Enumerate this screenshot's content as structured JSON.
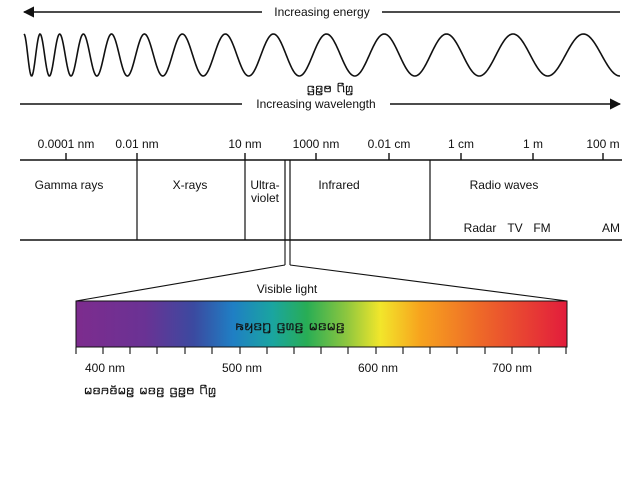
{
  "top": {
    "energy_label": "Increasing energy",
    "wavelength_label": "Increasing wavelength",
    "wave_overlay": "ꤞꤢ꤭ꤥ ꤖꤛ꤬"
  },
  "scale": {
    "ticks": [
      "0.0001 nm",
      "0.01 nm",
      "10 nm",
      "1000 nm",
      "0.01 cm",
      "1 cm",
      "1 m",
      "100 m"
    ]
  },
  "bands": {
    "gamma": "Gamma rays",
    "xrays": "X-rays",
    "uv_line1": "Ultra-",
    "uv_line2": "violet",
    "infrared": "Infrared",
    "radio": "Radio waves",
    "radar": "Radar",
    "tv": "TV",
    "fm": "FM",
    "am": "AM"
  },
  "visible": {
    "label": "Visible light",
    "overlay": "ꤒꤟꤢꤚ꤬ ꤞꤛꤢ꤬ ꤗꤢꤗꤢ꤬",
    "ticks": [
      "400 nm",
      "500 nm",
      "600 nm",
      "700 nm"
    ],
    "bottom_overlay": "ꤗꤢꤏꤢꤩꤗꤢ꤭ ꤗꤢꤢ꤬ ꤞꤢ꤭ꤥ ꤖꤛ꤬"
  },
  "colors": {
    "line": "#111111",
    "spectrum": [
      "#7d2c8e",
      "#5b3a98",
      "#2f4fa3",
      "#1f8bc9",
      "#1aa58a",
      "#3db34a",
      "#b8d431",
      "#f5e52b",
      "#f7a21e",
      "#ee5a24",
      "#e21c3c"
    ]
  }
}
